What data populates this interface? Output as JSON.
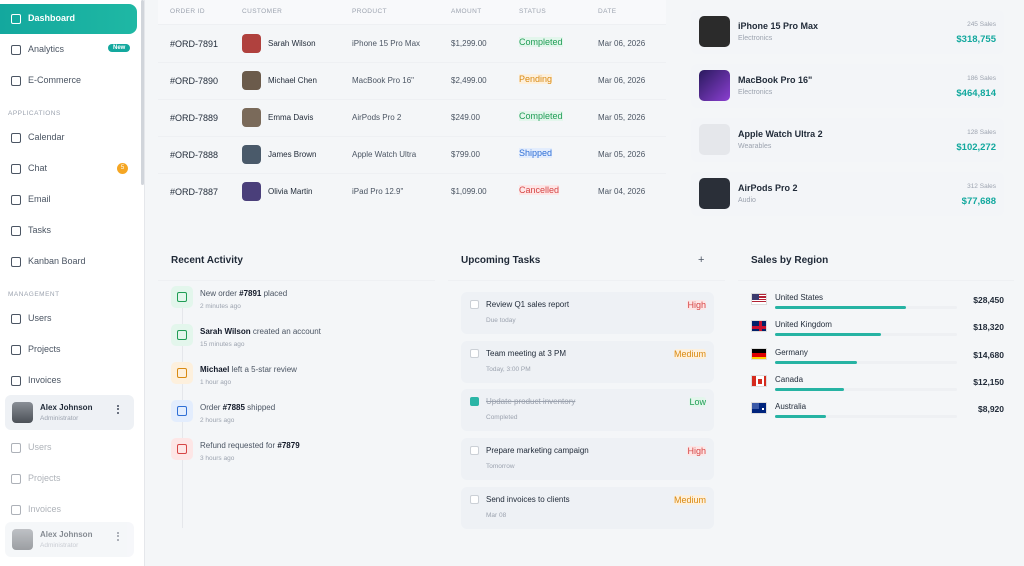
{
  "sidebar": {
    "primary": [
      {
        "label": "Dashboard"
      },
      {
        "label": "Analytics",
        "badge": "New"
      },
      {
        "label": "E-Commerce"
      }
    ],
    "sections": [
      {
        "title": "APPLICATIONS",
        "items": [
          {
            "label": "Calendar"
          },
          {
            "label": "Chat",
            "badge": "5"
          },
          {
            "label": "Email"
          },
          {
            "label": "Tasks"
          },
          {
            "label": "Kanban Board"
          }
        ]
      },
      {
        "title": "MANAGEMENT",
        "items": [
          {
            "label": "Users"
          },
          {
            "label": "Projects"
          },
          {
            "label": "Invoices"
          }
        ]
      }
    ],
    "user": {
      "name": "Alex Johnson",
      "role": "Administrator"
    },
    "ghost": {
      "items": [
        {
          "label": "Users"
        },
        {
          "label": "Projects"
        },
        {
          "label": "Invoices"
        }
      ],
      "user": {
        "name": "Alex Johnson",
        "role": "Administrator"
      }
    }
  },
  "orders": {
    "headers": [
      "ORDER ID",
      "CUSTOMER",
      "PRODUCT",
      "AMOUNT",
      "STATUS",
      "DATE"
    ],
    "rows": [
      {
        "id": "#ORD-7891",
        "customer": "Sarah Wilson",
        "product": "iPhone 15 Pro Max",
        "amount": "$1,299.00",
        "status": "Completed",
        "tone": "green",
        "date": "Mar 06, 2026"
      },
      {
        "id": "#ORD-7890",
        "customer": "Michael Chen",
        "product": "MacBook Pro 16\"",
        "amount": "$2,499.00",
        "status": "Pending",
        "tone": "orange",
        "date": "Mar 06, 2026"
      },
      {
        "id": "#ORD-7889",
        "customer": "Emma Davis",
        "product": "AirPods Pro 2",
        "amount": "$249.00",
        "status": "Completed",
        "tone": "green",
        "date": "Mar 05, 2026"
      },
      {
        "id": "#ORD-7888",
        "customer": "James Brown",
        "product": "Apple Watch Ultra",
        "amount": "$799.00",
        "status": "Shipped",
        "tone": "blue",
        "date": "Mar 05, 2026"
      },
      {
        "id": "#ORD-7887",
        "customer": "Olivia Martin",
        "product": "iPad Pro 12.9\"",
        "amount": "$1,099.00",
        "status": "Cancelled",
        "tone": "red",
        "date": "Mar 04, 2026"
      }
    ]
  },
  "top_products": [
    {
      "name": "iPhone 15 Pro Max",
      "category": "Electronics",
      "sales": "245 Sales",
      "revenue": "$318,755"
    },
    {
      "name": "MacBook Pro 16\"",
      "category": "Electronics",
      "sales": "186 Sales",
      "revenue": "$464,814"
    },
    {
      "name": "Apple Watch Ultra 2",
      "category": "Wearables",
      "sales": "128 Sales",
      "revenue": "$102,272"
    },
    {
      "name": "AirPods Pro 2",
      "category": "Audio",
      "sales": "312 Sales",
      "revenue": "$77,688"
    }
  ],
  "activity": {
    "title": "Recent Activity",
    "items": [
      {
        "parts": [
          {
            "t": "New order "
          },
          {
            "b": "#7891"
          },
          {
            "t": " placed"
          }
        ],
        "time": "2 minutes ago",
        "tone": "green"
      },
      {
        "parts": [
          {
            "b": "Sarah Wilson"
          },
          {
            "t": " created an account"
          }
        ],
        "time": "15 minutes ago",
        "tone": "green"
      },
      {
        "parts": [
          {
            "b": "Michael"
          },
          {
            "t": " left a 5-star review"
          }
        ],
        "time": "1 hour ago",
        "tone": "orange"
      },
      {
        "parts": [
          {
            "t": "Order "
          },
          {
            "b": "#7885"
          },
          {
            "t": " shipped"
          }
        ],
        "time": "2 hours ago",
        "tone": "blue"
      },
      {
        "parts": [
          {
            "t": "Refund requested for "
          },
          {
            "b": "#7879"
          }
        ],
        "time": "3 hours ago",
        "tone": "red"
      }
    ]
  },
  "tasks": {
    "title": "Upcoming Tasks",
    "add": "+",
    "items": [
      {
        "title": "Review Q1 sales report",
        "sub": "Due today",
        "priority": "High",
        "tone": "red",
        "done": false
      },
      {
        "title": "Team meeting at 3 PM",
        "sub": "Today, 3:00 PM",
        "priority": "Medium",
        "tone": "orange",
        "done": false
      },
      {
        "title": "Update product inventory",
        "sub": "Completed",
        "priority": "Low",
        "tone": "green",
        "done": true
      },
      {
        "title": "Prepare marketing campaign",
        "sub": "Tomorrow",
        "priority": "High",
        "tone": "red",
        "done": false
      },
      {
        "title": "Send invoices to clients",
        "sub": "Mar 08",
        "priority": "Medium",
        "tone": "orange",
        "done": false
      }
    ]
  },
  "regions": {
    "title": "Sales by Region",
    "items": [
      {
        "country": "United States",
        "sales": "$28,450",
        "share": 72
      },
      {
        "country": "United Kingdom",
        "sales": "$18,320",
        "share": 58
      },
      {
        "country": "Germany",
        "sales": "$14,680",
        "share": 45
      },
      {
        "country": "Canada",
        "sales": "$12,150",
        "share": 38
      },
      {
        "country": "Australia",
        "sales": "$8,920",
        "share": 28
      }
    ]
  }
}
